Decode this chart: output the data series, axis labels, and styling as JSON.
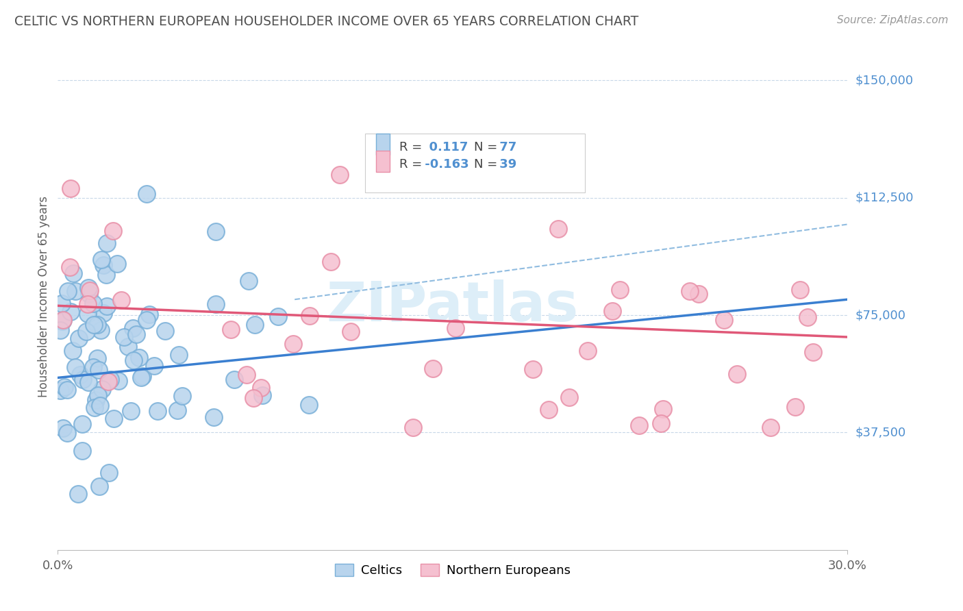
{
  "title": "CELTIC VS NORTHERN EUROPEAN HOUSEHOLDER INCOME OVER 65 YEARS CORRELATION CHART",
  "source_text": "Source: ZipAtlas.com",
  "ylabel": "Householder Income Over 65 years",
  "xlim": [
    0.0,
    0.3
  ],
  "ylim": [
    0,
    162000
  ],
  "ytick_vals": [
    37500,
    75000,
    112500,
    150000
  ],
  "ytick_labels": [
    "$37,500",
    "$75,000",
    "$112,500",
    "$150,000"
  ],
  "background_color": "#ffffff",
  "grid_color": "#c8d8e8",
  "celtic_fill": "#b8d4ed",
  "celtic_edge": "#7ab0d8",
  "northern_fill": "#f5c0d0",
  "northern_edge": "#e890a8",
  "trend_celtic_color": "#3a7fd0",
  "trend_northern_color": "#e05878",
  "trend_dashed_color": "#90bce0",
  "title_color": "#505050",
  "ytick_color": "#5090d0",
  "source_color": "#999999",
  "watermark_color": "#ddeef8",
  "R_celtic": 0.117,
  "N_celtic": 77,
  "R_northern": -0.163,
  "N_northern": 39,
  "legend_label_celtic": "Celtics",
  "legend_label_northern": "Northern Europeans",
  "celtic_trend_x0": 0.0,
  "celtic_trend_y0": 55000,
  "celtic_trend_x1": 0.3,
  "celtic_trend_y1": 80000,
  "northern_trend_x0": 0.0,
  "northern_trend_y0": 78000,
  "northern_trend_x1": 0.3,
  "northern_trend_y1": 68000,
  "dashed_trend_x0": 0.09,
  "dashed_trend_y0": 80000,
  "dashed_trend_x1": 0.3,
  "dashed_trend_y1": 104000
}
